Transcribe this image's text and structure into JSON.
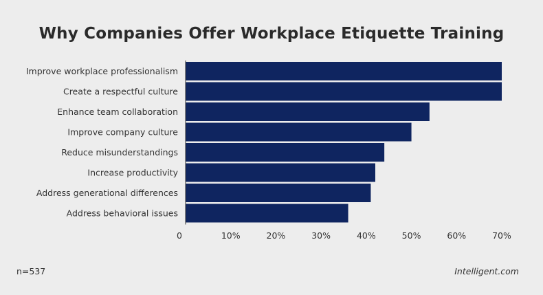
{
  "chart_data": {
    "type": "bar",
    "orientation": "horizontal",
    "title": "Why Companies Offer Workplace Etiquette Training",
    "categories": [
      "Improve workplace professionalism",
      "Create a respectful culture",
      "Enhance team collaboration",
      "Improve company culture",
      "Reduce misunderstandings",
      "Increase productivity",
      "Address generational differences",
      "Address behavioral issues"
    ],
    "values": [
      70,
      70,
      54,
      50,
      44,
      42,
      41,
      36
    ],
    "xlim": [
      0,
      70
    ],
    "xticks": [
      0,
      10,
      20,
      30,
      40,
      50,
      60,
      70
    ],
    "xtick_labels": [
      "0",
      "10%",
      "20%",
      "30%",
      "40%",
      "50%",
      "60%",
      "70%"
    ],
    "bar_color": "#0f2560",
    "grid": false
  },
  "footer": {
    "sample_size": "n=537",
    "source": "Intelligent.com"
  }
}
